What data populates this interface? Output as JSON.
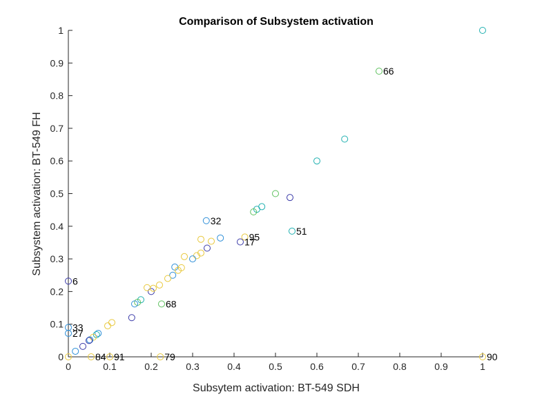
{
  "chart_data": {
    "type": "scatter",
    "title": "Comparison of Subsystem activation",
    "xlabel": "Subsytem activation: BT-549 SDH",
    "ylabel": "Subsystem activation: BT-549 FH",
    "xlim": [
      0,
      1
    ],
    "ylim": [
      0,
      1
    ],
    "xticks": [
      "0",
      "0.1",
      "0.2",
      "0.3",
      "0.4",
      "0.5",
      "0.6",
      "0.7",
      "0.8",
      "0.9",
      "1"
    ],
    "yticks": [
      "0",
      "0.1",
      "0.2",
      "0.3",
      "0.4",
      "0.5",
      "0.6",
      "0.7",
      "0.8",
      "0.9",
      "1"
    ],
    "grid": false,
    "marker": "open-circle",
    "colors": {
      "navy": "#3a3aa8",
      "blue": "#2f8fd8",
      "teal": "#1fb0b0",
      "green": "#5cc05c",
      "yellow": "#e8c83c"
    },
    "points": [
      {
        "x": 1.0,
        "y": 1.0,
        "color": "teal"
      },
      {
        "x": 0.75,
        "y": 0.875,
        "color": "green",
        "label": "66"
      },
      {
        "x": 0.667,
        "y": 0.667,
        "color": "teal"
      },
      {
        "x": 0.6,
        "y": 0.6,
        "color": "teal"
      },
      {
        "x": 0.5,
        "y": 0.5,
        "color": "green"
      },
      {
        "x": 0.535,
        "y": 0.488,
        "color": "navy"
      },
      {
        "x": 0.467,
        "y": 0.46,
        "color": "teal"
      },
      {
        "x": 0.455,
        "y": 0.452,
        "color": "teal"
      },
      {
        "x": 0.447,
        "y": 0.444,
        "color": "green"
      },
      {
        "x": 0.54,
        "y": 0.385,
        "color": "teal",
        "label": "51"
      },
      {
        "x": 0.333,
        "y": 0.417,
        "color": "blue",
        "label": "32"
      },
      {
        "x": 0.367,
        "y": 0.364,
        "color": "blue"
      },
      {
        "x": 0.426,
        "y": 0.367,
        "color": "yellow",
        "label": "95"
      },
      {
        "x": 0.415,
        "y": 0.352,
        "color": "navy",
        "label": "17"
      },
      {
        "x": 0.345,
        "y": 0.354,
        "color": "yellow"
      },
      {
        "x": 0.335,
        "y": 0.333,
        "color": "navy"
      },
      {
        "x": 0.32,
        "y": 0.36,
        "color": "yellow"
      },
      {
        "x": 0.32,
        "y": 0.318,
        "color": "yellow"
      },
      {
        "x": 0.31,
        "y": 0.31,
        "color": "yellow"
      },
      {
        "x": 0.3,
        "y": 0.3,
        "color": "blue"
      },
      {
        "x": 0.28,
        "y": 0.307,
        "color": "yellow"
      },
      {
        "x": 0.273,
        "y": 0.273,
        "color": "yellow"
      },
      {
        "x": 0.257,
        "y": 0.275,
        "color": "blue"
      },
      {
        "x": 0.265,
        "y": 0.265,
        "color": "yellow"
      },
      {
        "x": 0.252,
        "y": 0.25,
        "color": "blue"
      },
      {
        "x": 0.24,
        "y": 0.24,
        "color": "yellow"
      },
      {
        "x": 0.22,
        "y": 0.22,
        "color": "yellow"
      },
      {
        "x": 0.225,
        "y": 0.162,
        "color": "green",
        "label": "68"
      },
      {
        "x": 0.2,
        "y": 0.2,
        "color": "navy"
      },
      {
        "x": 0.205,
        "y": 0.21,
        "color": "yellow"
      },
      {
        "x": 0.19,
        "y": 0.212,
        "color": "yellow"
      },
      {
        "x": 0.175,
        "y": 0.175,
        "color": "teal"
      },
      {
        "x": 0.167,
        "y": 0.167,
        "color": "green"
      },
      {
        "x": 0.16,
        "y": 0.162,
        "color": "blue"
      },
      {
        "x": 0.153,
        "y": 0.12,
        "color": "navy"
      },
      {
        "x": 0.105,
        "y": 0.105,
        "color": "yellow"
      },
      {
        "x": 0.095,
        "y": 0.095,
        "color": "yellow"
      },
      {
        "x": 0.072,
        "y": 0.072,
        "color": "blue"
      },
      {
        "x": 0.068,
        "y": 0.068,
        "color": "teal"
      },
      {
        "x": 0.06,
        "y": 0.06,
        "color": "yellow"
      },
      {
        "x": 0.052,
        "y": 0.052,
        "color": "blue"
      },
      {
        "x": 0.05,
        "y": 0.05,
        "color": "navy"
      },
      {
        "x": 0.035,
        "y": 0.032,
        "color": "navy"
      },
      {
        "x": 0.017,
        "y": 0.017,
        "color": "blue"
      },
      {
        "x": 0.0,
        "y": 0.232,
        "color": "navy",
        "label": "6"
      },
      {
        "x": 0.0,
        "y": 0.09,
        "color": "blue",
        "label": "33"
      },
      {
        "x": 0.0,
        "y": 0.072,
        "color": "blue",
        "label": "27"
      },
      {
        "x": 0.0,
        "y": 0.0,
        "color": "yellow"
      },
      {
        "x": 0.055,
        "y": 0.0,
        "color": "yellow",
        "label": "84"
      },
      {
        "x": 0.1,
        "y": 0.0,
        "color": "yellow",
        "label": "91"
      },
      {
        "x": 0.222,
        "y": 0.0,
        "color": "yellow",
        "label": "79"
      },
      {
        "x": 1.0,
        "y": 0.0,
        "color": "yellow",
        "label": "90"
      }
    ]
  }
}
